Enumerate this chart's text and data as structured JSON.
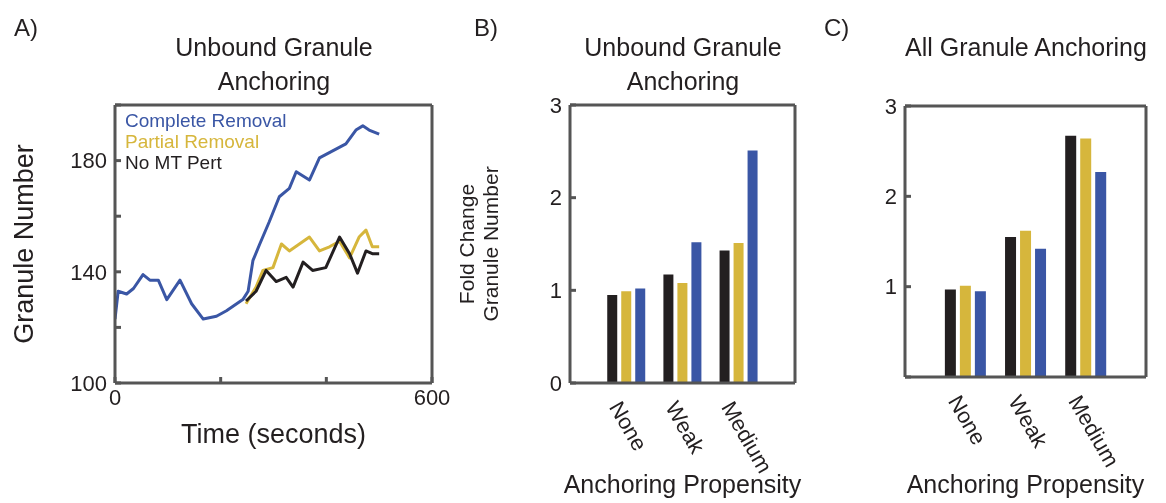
{
  "chart_data": [
    {
      "type": "line",
      "title": "Unbound Granule Anchoring",
      "xlabel": "Time (seconds)",
      "ylabel": "Granule Number",
      "annotations": [
        "A)"
      ],
      "legend": "top left",
      "grid": false,
      "marker": "none",
      "line_style": "solid",
      "xlim": [
        0,
        600
      ],
      "xticks": [
        0,
        {
          "value": 200,
          "label": null
        },
        {
          "value": 400,
          "label": null
        },
        600
      ],
      "ylim": [
        100,
        200
      ],
      "yticks": [
        100,
        {
          "value": 120,
          "label": null
        },
        140,
        {
          "value": 160,
          "label": null
        },
        180,
        {
          "value": 200,
          "label": null
        }
      ],
      "series": [
        {
          "name": "Complete Removal",
          "color": "#3a56a5",
          "x": [
            0,
            6,
            22,
            35,
            53,
            66,
            82,
            98,
            123,
            145,
            167,
            192,
            211,
            242,
            252,
            261,
            274,
            292,
            311,
            330,
            343,
            368,
            387,
            412,
            437,
            456,
            469,
            481,
            500
          ],
          "values": [
            123,
            133,
            132,
            134,
            139,
            137,
            137,
            130,
            137,
            128.5,
            123,
            124,
            126,
            130,
            133,
            144,
            150,
            158,
            167,
            170,
            176,
            173,
            181,
            183.5,
            186,
            191,
            192.5,
            191,
            189.5
          ]
        },
        {
          "name": "Partial Removal",
          "color": "#d6b63c",
          "x": [
            248,
            267,
            280,
            299,
            315,
            330,
            349,
            368,
            387,
            406,
            425,
            444,
            462,
            475,
            487,
            500
          ],
          "values": [
            128.5,
            134.5,
            140.5,
            141.5,
            150,
            147.5,
            150,
            152.5,
            147.5,
            149,
            151,
            145,
            152.5,
            155,
            149,
            149
          ]
        },
        {
          "name": "No MT Pert",
          "color": "#231f20",
          "x": [
            248,
            267,
            286,
            305,
            324,
            337,
            356,
            374,
            399,
            425,
            444,
            459,
            475,
            487,
            500
          ],
          "values": [
            129.5,
            133,
            140.5,
            136.5,
            138,
            134.5,
            143.5,
            140.5,
            141.5,
            152.5,
            146.5,
            139.5,
            147.5,
            146.5,
            146.5
          ]
        }
      ]
    },
    {
      "type": "bar",
      "title": "Unbound Granule Anchoring",
      "xlabel": "Anchoring Propensity",
      "ylabel": "Fold Change\nGranule Number",
      "annotations": [
        "B)"
      ],
      "grid": false,
      "categories": [
        "None",
        "Weak",
        "Medium"
      ],
      "ylim": [
        0,
        3
      ],
      "yticks": [
        0,
        1,
        2,
        3
      ],
      "series": [
        {
          "color": "#231f20",
          "values": [
            0.95,
            1.17,
            1.43
          ]
        },
        {
          "color": "#d6b63c",
          "values": [
            0.99,
            1.08,
            1.51
          ]
        },
        {
          "color": "#3a56a5",
          "values": [
            1.02,
            1.52,
            2.51
          ]
        }
      ]
    },
    {
      "type": "bar",
      "title": "All Granule Anchoring",
      "xlabel": "Anchoring Propensity",
      "annotations": [
        "C)"
      ],
      "grid": false,
      "categories": [
        "None",
        "Weak",
        "Medium"
      ],
      "ylim": [
        0,
        3
      ],
      "yticks": [
        {
          "value": 0,
          "label": null
        },
        1,
        2,
        3
      ],
      "series": [
        {
          "color": "#231f20",
          "values": [
            0.97,
            1.55,
            2.67
          ]
        },
        {
          "color": "#d6b63c",
          "values": [
            1.01,
            1.62,
            2.64
          ]
        },
        {
          "color": "#3a56a5",
          "values": [
            0.95,
            1.42,
            2.27
          ]
        }
      ]
    }
  ]
}
